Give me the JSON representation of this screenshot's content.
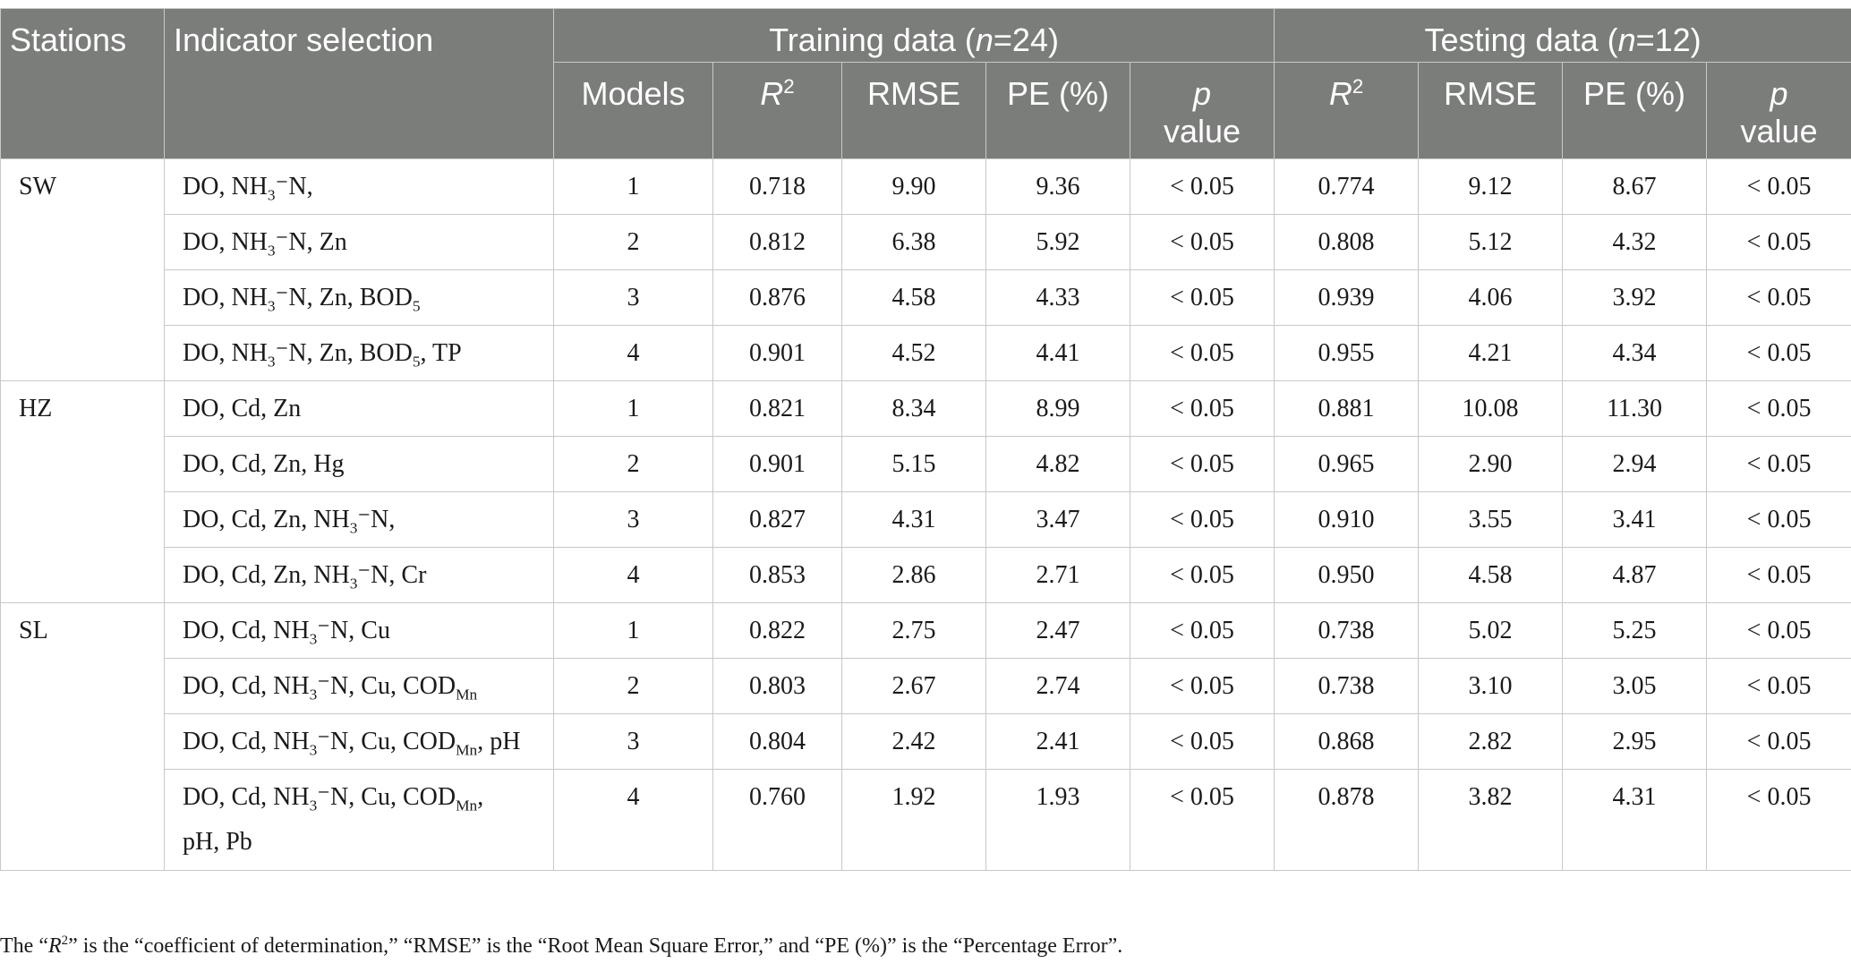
{
  "header": {
    "stations": "Stations",
    "indicator_selection": "Indicator selection",
    "training_label": "Training data (",
    "training_n": "n",
    "training_count": "=24)",
    "testing_label": "Testing data (",
    "testing_n": "n",
    "testing_count": "=12)",
    "models": "Models",
    "r": "R",
    "r_sup": "2",
    "rmse": "RMSE",
    "pe": "PE (%)",
    "p": "p",
    "value": "value"
  },
  "groups": [
    {
      "station": "SW",
      "rows": [
        {
          "model": "1",
          "tr_r2": "0.718",
          "tr_rmse": "9.90",
          "tr_pe": "9.36",
          "tr_p": "< 0.05",
          "te_r2": "0.774",
          "te_rmse": "9.12",
          "te_pe": "8.67",
          "te_p": "< 0.05"
        },
        {
          "model": "2",
          "tr_r2": "0.812",
          "tr_rmse": "6.38",
          "tr_pe": "5.92",
          "tr_p": "< 0.05",
          "te_r2": "0.808",
          "te_rmse": "5.12",
          "te_pe": "4.32",
          "te_p": "< 0.05"
        },
        {
          "model": "3",
          "tr_r2": "0.876",
          "tr_rmse": "4.58",
          "tr_pe": "4.33",
          "tr_p": "< 0.05",
          "te_r2": "0.939",
          "te_rmse": "4.06",
          "te_pe": "3.92",
          "te_p": "< 0.05"
        },
        {
          "model": "4",
          "tr_r2": "0.901",
          "tr_rmse": "4.52",
          "tr_pe": "4.41",
          "tr_p": "< 0.05",
          "te_r2": "0.955",
          "te_rmse": "4.21",
          "te_pe": "4.34",
          "te_p": "< 0.05"
        }
      ]
    },
    {
      "station": "HZ",
      "rows": [
        {
          "model": "1",
          "tr_r2": "0.821",
          "tr_rmse": "8.34",
          "tr_pe": "8.99",
          "tr_p": "< 0.05",
          "te_r2": "0.881",
          "te_rmse": "10.08",
          "te_pe": "11.30",
          "te_p": "< 0.05"
        },
        {
          "model": "2",
          "tr_r2": "0.901",
          "tr_rmse": "5.15",
          "tr_pe": "4.82",
          "tr_p": "< 0.05",
          "te_r2": "0.965",
          "te_rmse": "2.90",
          "te_pe": "2.94",
          "te_p": "< 0.05"
        },
        {
          "model": "3",
          "tr_r2": "0.827",
          "tr_rmse": "4.31",
          "tr_pe": "3.47",
          "tr_p": "< 0.05",
          "te_r2": "0.910",
          "te_rmse": "3.55",
          "te_pe": "3.41",
          "te_p": "< 0.05"
        },
        {
          "model": "4",
          "tr_r2": "0.853",
          "tr_rmse": "2.86",
          "tr_pe": "2.71",
          "tr_p": "< 0.05",
          "te_r2": "0.950",
          "te_rmse": "4.58",
          "te_pe": "4.87",
          "te_p": "< 0.05"
        }
      ]
    },
    {
      "station": "SL",
      "rows": [
        {
          "model": "1",
          "tr_r2": "0.822",
          "tr_rmse": "2.75",
          "tr_pe": "2.47",
          "tr_p": "< 0.05",
          "te_r2": "0.738",
          "te_rmse": "5.02",
          "te_pe": "5.25",
          "te_p": "< 0.05"
        },
        {
          "model": "2",
          "tr_r2": "0.803",
          "tr_rmse": "2.67",
          "tr_pe": "2.74",
          "tr_p": "< 0.05",
          "te_r2": "0.738",
          "te_rmse": "3.10",
          "te_pe": "3.05",
          "te_p": "< 0.05"
        },
        {
          "model": "3",
          "tr_r2": "0.804",
          "tr_rmse": "2.42",
          "tr_pe": "2.41",
          "tr_p": "< 0.05",
          "te_r2": "0.868",
          "te_rmse": "2.82",
          "te_pe": "2.95",
          "te_p": "< 0.05"
        },
        {
          "model": "4",
          "tr_r2": "0.760",
          "tr_rmse": "1.92",
          "tr_pe": "1.93",
          "tr_p": "< 0.05",
          "te_r2": "0.878",
          "te_rmse": "3.82",
          "te_pe": "4.31",
          "te_p": "< 0.05"
        }
      ]
    }
  ],
  "tokens": {
    "do": "DO, ",
    "cd": "Cd, ",
    "nh": "NH",
    "sub3": "3",
    "nh_tail": "⁻N,",
    "nh_tail_sp": "⁻N, ",
    "zn": "Zn",
    "zn_comma": "Zn, ",
    "bod": "BOD",
    "sub5": "5",
    "tp": ", TP",
    "hg": "Hg",
    "cr": "Cr",
    "cu": "Cu",
    "cu_comma": "Cu, ",
    "cod": "COD",
    "mn": "Mn",
    "comma": ",",
    "ph": ", pH",
    "ph_pb": "pH, Pb"
  },
  "footnote": {
    "pre": "The “",
    "r": "R",
    "sup": "2",
    "post": "” is the “coefficient of determination,” “RMSE” is the “Root Mean Square Error,” and “PE (%)” is the “Percentage Error”."
  }
}
